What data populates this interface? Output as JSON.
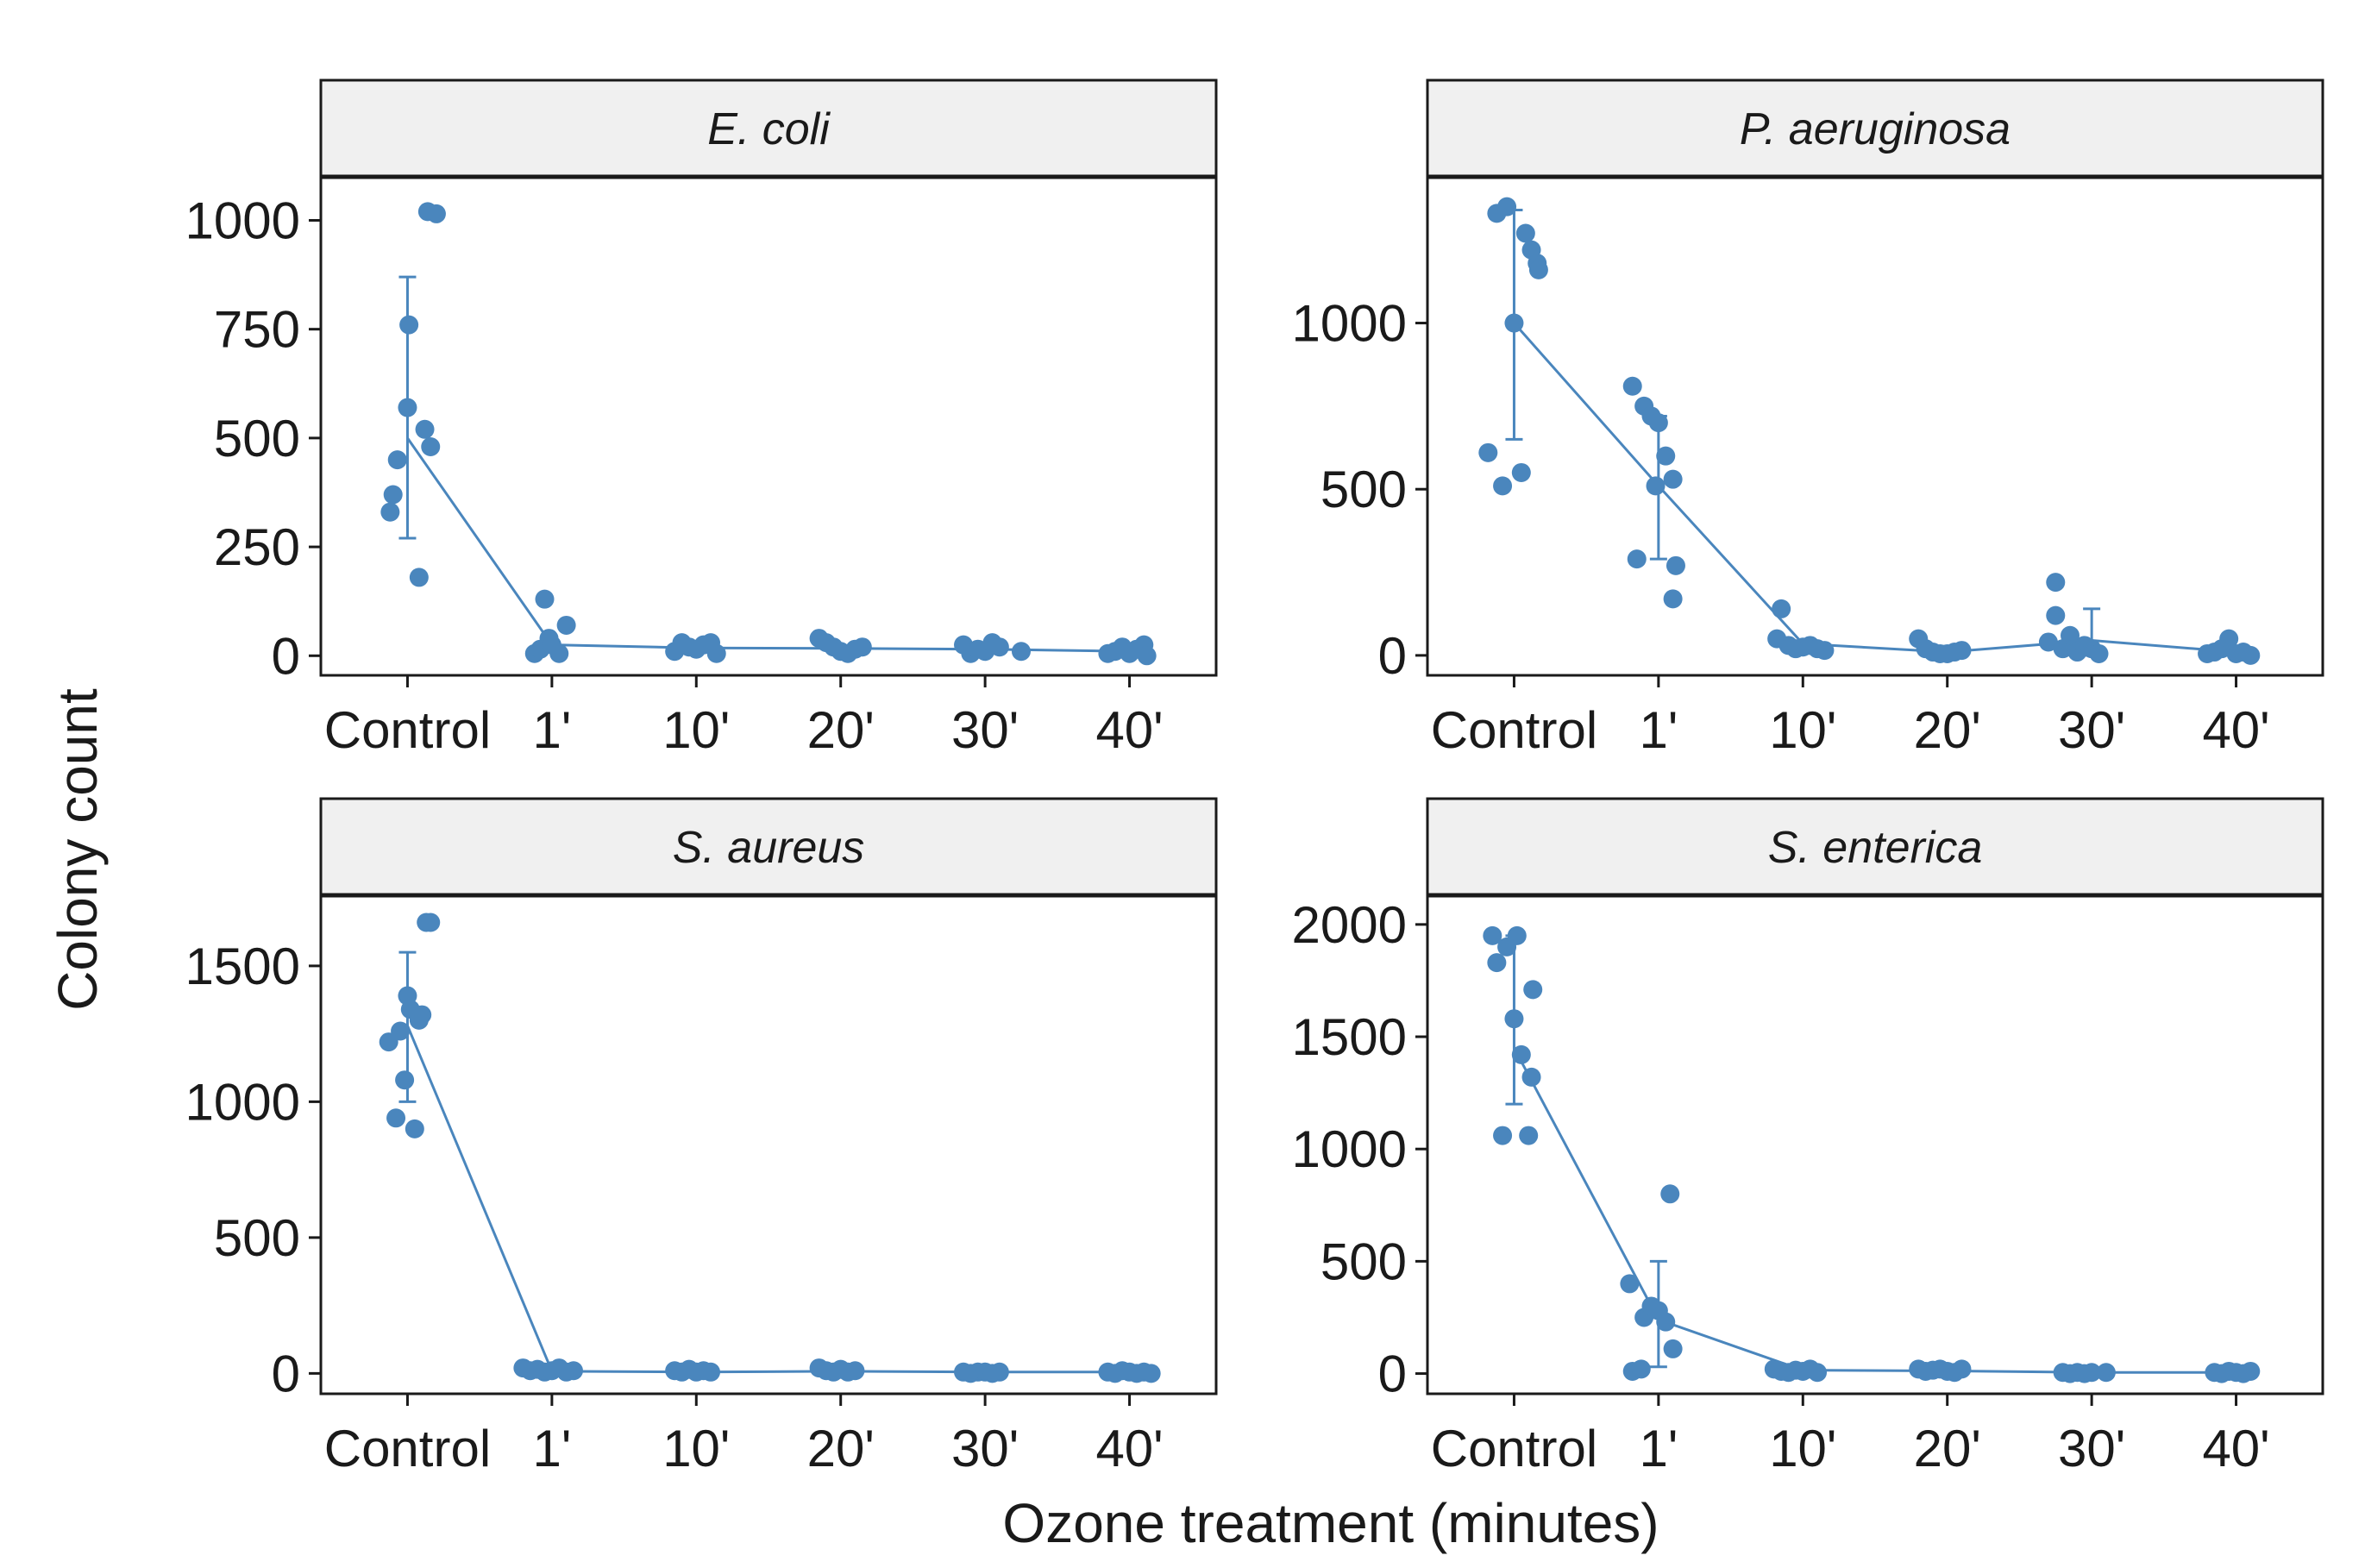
{
  "figure": {
    "xlabel": "Ozone treatment (minutes)",
    "ylabel": "Colony count",
    "point_color": "#4a86bd",
    "line_color": "#4a86bd",
    "strip_fill": "#f0f0f0"
  },
  "chart_data": [
    {
      "type": "scatter",
      "title": "E. coli",
      "categories": [
        "Control",
        "1'",
        "10'",
        "20'",
        "30'",
        "40'"
      ],
      "yticks": [
        0,
        250,
        500,
        750,
        1000
      ],
      "ylim": [
        -45,
        1100
      ],
      "summary": {
        "means": [
          500,
          25,
          18,
          17,
          15,
          10
        ],
        "sd": [
          [
            270,
            870
          ],
          null,
          null,
          null,
          null,
          null
        ]
      },
      "points": [
        [
          -0.12,
          330
        ],
        [
          -0.1,
          370
        ],
        [
          -0.07,
          450
        ],
        [
          0.0,
          570
        ],
        [
          0.01,
          760
        ],
        [
          0.08,
          180
        ],
        [
          0.12,
          520
        ],
        [
          0.16,
          480
        ],
        [
          0.14,
          1020
        ],
        [
          0.2,
          1015
        ],
        [
          0.88,
          5
        ],
        [
          0.92,
          15
        ],
        [
          0.95,
          130
        ],
        [
          0.98,
          40
        ],
        [
          1.0,
          25
        ],
        [
          1.05,
          5
        ],
        [
          1.1,
          70
        ],
        [
          1.85,
          10
        ],
        [
          1.9,
          30
        ],
        [
          1.95,
          20
        ],
        [
          2.0,
          15
        ],
        [
          2.05,
          25
        ],
        [
          2.1,
          30
        ],
        [
          2.14,
          5
        ],
        [
          2.85,
          40
        ],
        [
          2.9,
          30
        ],
        [
          2.95,
          20
        ],
        [
          3.0,
          10
        ],
        [
          3.05,
          5
        ],
        [
          3.1,
          15
        ],
        [
          3.15,
          20
        ],
        [
          3.85,
          25
        ],
        [
          3.9,
          5
        ],
        [
          3.95,
          15
        ],
        [
          4.0,
          10
        ],
        [
          4.05,
          30
        ],
        [
          4.1,
          20
        ],
        [
          4.25,
          10
        ],
        [
          4.85,
          5
        ],
        [
          4.9,
          10
        ],
        [
          4.95,
          20
        ],
        [
          5.0,
          5
        ],
        [
          5.05,
          15
        ],
        [
          5.1,
          25
        ],
        [
          5.12,
          0
        ]
      ]
    },
    {
      "type": "scatter",
      "title": "P. aeruginosa",
      "categories": [
        "Control",
        "1'",
        "10'",
        "20'",
        "30'",
        "40'"
      ],
      "yticks": [
        0,
        500,
        1000
      ],
      "ylim": [
        -60,
        1440
      ],
      "summary": {
        "means": [
          1000,
          510,
          35,
          10,
          45,
          10
        ],
        "sd": [
          [
            650,
            1340
          ],
          [
            290,
            720
          ],
          null,
          null,
          [
            0,
            140
          ],
          null
        ]
      },
      "points": [
        [
          -0.18,
          610
        ],
        [
          -0.12,
          1330
        ],
        [
          -0.08,
          510
        ],
        [
          -0.05,
          1350
        ],
        [
          0.0,
          1000
        ],
        [
          0.05,
          550
        ],
        [
          0.08,
          1270
        ],
        [
          0.12,
          1220
        ],
        [
          0.16,
          1180
        ],
        [
          0.17,
          1160
        ],
        [
          0.82,
          810
        ],
        [
          0.85,
          290
        ],
        [
          0.9,
          750
        ],
        [
          0.95,
          720
        ],
        [
          0.98,
          510
        ],
        [
          1.0,
          700
        ],
        [
          1.05,
          600
        ],
        [
          1.1,
          530
        ],
        [
          1.12,
          270
        ],
        [
          1.1,
          170
        ],
        [
          1.82,
          50
        ],
        [
          1.85,
          140
        ],
        [
          1.9,
          30
        ],
        [
          1.95,
          20
        ],
        [
          2.0,
          25
        ],
        [
          2.05,
          30
        ],
        [
          2.1,
          20
        ],
        [
          2.15,
          15
        ],
        [
          2.8,
          50
        ],
        [
          2.85,
          20
        ],
        [
          2.9,
          10
        ],
        [
          2.95,
          5
        ],
        [
          3.0,
          5
        ],
        [
          3.05,
          10
        ],
        [
          3.1,
          15
        ],
        [
          3.7,
          40
        ],
        [
          3.75,
          220
        ],
        [
          3.75,
          120
        ],
        [
          3.8,
          20
        ],
        [
          3.85,
          60
        ],
        [
          3.9,
          10
        ],
        [
          3.95,
          30
        ],
        [
          4.0,
          20
        ],
        [
          4.05,
          5
        ],
        [
          4.8,
          5
        ],
        [
          4.85,
          10
        ],
        [
          4.9,
          20
        ],
        [
          4.95,
          50
        ],
        [
          5.0,
          5
        ],
        [
          5.05,
          10
        ],
        [
          5.1,
          0
        ]
      ]
    },
    {
      "type": "scatter",
      "title": "S. aureus",
      "categories": [
        "Control",
        "1'",
        "10'",
        "20'",
        "30'",
        "40'"
      ],
      "yticks": [
        0,
        500,
        1000,
        1500
      ],
      "ylim": [
        -75,
        1760
      ],
      "summary": {
        "means": [
          1280,
          8,
          5,
          8,
          5,
          5
        ],
        "sd": [
          [
            1000,
            1550
          ],
          null,
          null,
          null,
          null,
          null
        ]
      },
      "points": [
        [
          -0.13,
          1220
        ],
        [
          -0.08,
          940
        ],
        [
          -0.05,
          1260
        ],
        [
          -0.02,
          1080
        ],
        [
          0.0,
          1390
        ],
        [
          0.02,
          1340
        ],
        [
          0.05,
          900
        ],
        [
          0.08,
          1300
        ],
        [
          0.1,
          1320
        ],
        [
          0.13,
          1660
        ],
        [
          0.16,
          1660
        ],
        [
          0.8,
          20
        ],
        [
          0.85,
          10
        ],
        [
          0.9,
          15
        ],
        [
          0.95,
          5
        ],
        [
          1.0,
          10
        ],
        [
          1.05,
          20
        ],
        [
          1.1,
          5
        ],
        [
          1.15,
          10
        ],
        [
          1.85,
          10
        ],
        [
          1.9,
          5
        ],
        [
          1.95,
          15
        ],
        [
          2.0,
          5
        ],
        [
          2.05,
          10
        ],
        [
          2.1,
          5
        ],
        [
          2.85,
          20
        ],
        [
          2.9,
          10
        ],
        [
          2.95,
          5
        ],
        [
          3.0,
          15
        ],
        [
          3.05,
          5
        ],
        [
          3.1,
          10
        ],
        [
          3.85,
          5
        ],
        [
          3.9,
          0
        ],
        [
          3.95,
          5
        ],
        [
          4.0,
          5
        ],
        [
          4.05,
          0
        ],
        [
          4.1,
          5
        ],
        [
          4.85,
          5
        ],
        [
          4.9,
          0
        ],
        [
          4.95,
          10
        ],
        [
          5.0,
          5
        ],
        [
          5.05,
          0
        ],
        [
          5.1,
          5
        ],
        [
          5.15,
          0
        ]
      ]
    },
    {
      "type": "scatter",
      "title": "S. enterica",
      "categories": [
        "Control",
        "1'",
        "10'",
        "20'",
        "30'",
        "40'"
      ],
      "yticks": [
        0,
        500,
        1000,
        1500,
        2000
      ],
      "ylim": [
        -90,
        2130
      ],
      "summary": {
        "means": [
          1450,
          240,
          15,
          12,
          5,
          5
        ],
        "sd": [
          [
            1200,
            1950
          ],
          [
            30,
            500
          ],
          null,
          null,
          null,
          null
        ]
      },
      "points": [
        [
          -0.15,
          1950
        ],
        [
          -0.12,
          1830
        ],
        [
          -0.08,
          1060
        ],
        [
          -0.05,
          1900
        ],
        [
          0.0,
          1580
        ],
        [
          0.02,
          1950
        ],
        [
          0.05,
          1420
        ],
        [
          0.1,
          1060
        ],
        [
          0.12,
          1320
        ],
        [
          0.13,
          1710
        ],
        [
          0.8,
          400
        ],
        [
          0.82,
          10
        ],
        [
          0.88,
          20
        ],
        [
          0.9,
          250
        ],
        [
          0.95,
          300
        ],
        [
          1.0,
          280
        ],
        [
          1.05,
          230
        ],
        [
          1.08,
          800
        ],
        [
          1.1,
          110
        ],
        [
          1.8,
          20
        ],
        [
          1.85,
          10
        ],
        [
          1.9,
          5
        ],
        [
          1.95,
          15
        ],
        [
          2.0,
          10
        ],
        [
          2.05,
          20
        ],
        [
          2.1,
          5
        ],
        [
          2.8,
          20
        ],
        [
          2.85,
          10
        ],
        [
          2.9,
          15
        ],
        [
          2.95,
          20
        ],
        [
          3.0,
          10
        ],
        [
          3.05,
          5
        ],
        [
          3.1,
          20
        ],
        [
          3.8,
          5
        ],
        [
          3.85,
          0
        ],
        [
          3.9,
          5
        ],
        [
          3.95,
          0
        ],
        [
          4.0,
          5
        ],
        [
          4.1,
          5
        ],
        [
          4.85,
          5
        ],
        [
          4.9,
          0
        ],
        [
          4.95,
          10
        ],
        [
          5.0,
          5
        ],
        [
          5.05,
          0
        ],
        [
          5.1,
          10
        ]
      ]
    }
  ]
}
